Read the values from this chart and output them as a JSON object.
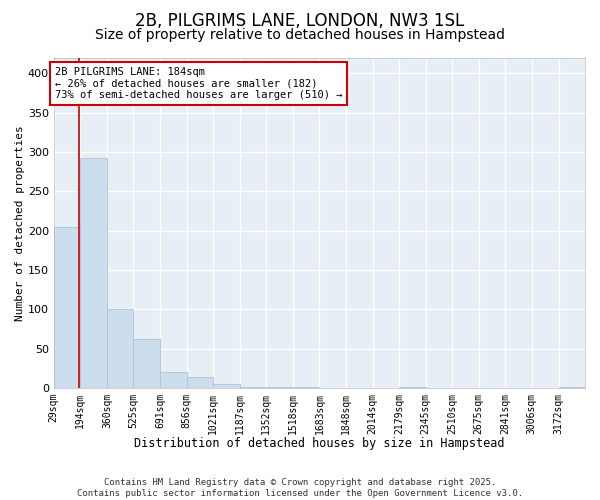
{
  "title": "2B, PILGRIMS LANE, LONDON, NW3 1SL",
  "subtitle": "Size of property relative to detached houses in Hampstead",
  "xlabel": "Distribution of detached houses by size in Hampstead",
  "ylabel": "Number of detached properties",
  "bar_color": "#ccdded",
  "bar_edge_color": "#aac4d8",
  "line_color": "#cc0000",
  "annotation_text": "2B PILGRIMS LANE: 184sqm\n← 26% of detached houses are smaller (182)\n73% of semi-detached houses are larger (510) →",
  "annotation_box_color": "white",
  "annotation_box_edge_color": "#cc0000",
  "property_size": 184,
  "ylim": [
    0,
    420
  ],
  "bar_edges": [
    29,
    194,
    360,
    525,
    691,
    856,
    1021,
    1187,
    1352,
    1518,
    1683,
    1848,
    2014,
    2179,
    2345,
    2510,
    2675,
    2841,
    3006,
    3172,
    3337
  ],
  "bar_heights": [
    205,
    293,
    100,
    62,
    20,
    14,
    5,
    2,
    1,
    1,
    0,
    0,
    0,
    1,
    0,
    0,
    0,
    0,
    0,
    1
  ],
  "footer_text": "Contains HM Land Registry data © Crown copyright and database right 2025.\nContains public sector information licensed under the Open Government Licence v3.0.",
  "background_color": "#ffffff",
  "plot_bg_color": "#e8eef5",
  "grid_color": "#ffffff",
  "title_fontsize": 12,
  "subtitle_fontsize": 10,
  "xlabel_fontsize": 8.5,
  "ylabel_fontsize": 8,
  "tick_fontsize": 7,
  "footer_fontsize": 6.5
}
